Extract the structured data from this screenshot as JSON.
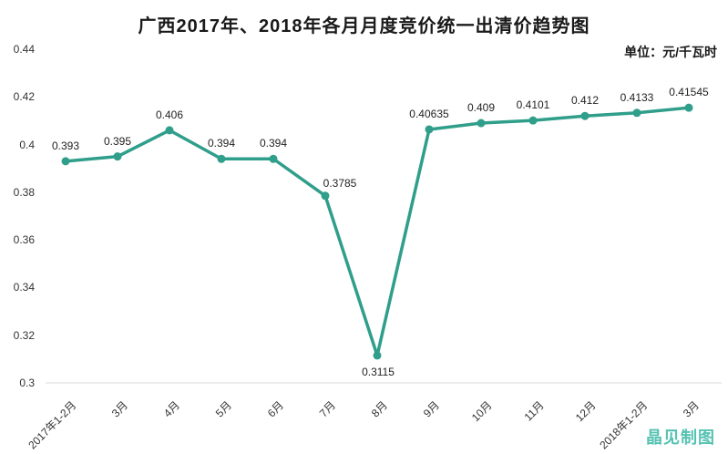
{
  "chart_data": {
    "type": "line",
    "title": "广西2017年、2018年各月月度竞价统一出清价趋势图",
    "unit_label": "单位：元/千瓦时",
    "categories": [
      "2017年1-2月",
      "3月",
      "4月",
      "5月",
      "6月",
      "7月",
      "8月",
      "9月",
      "10月",
      "11月",
      "12月",
      "2018年1-2月",
      "3月"
    ],
    "values": [
      0.393,
      0.395,
      0.406,
      0.394,
      0.394,
      0.3785,
      0.3115,
      0.40635,
      0.409,
      0.4101,
      0.412,
      0.4133,
      0.41545
    ],
    "point_labels": [
      "0.393",
      "0.395",
      "0.406",
      "0.394",
      "0.394",
      "0.3785",
      "0.3115",
      "0.40635",
      "0.409",
      "0.4101",
      "0.412",
      "0.4133",
      "0.41545"
    ],
    "label_offsets": {
      "5": [
        16,
        -13
      ],
      "6": [
        1,
        19
      ]
    },
    "y_ticks": [
      "0.44",
      "0.42",
      "0.4",
      "0.38",
      "0.36",
      "0.34",
      "0.32",
      "0.3"
    ],
    "ylim": [
      0.3,
      0.44
    ],
    "grid": false,
    "legend": "none",
    "line_color": "#2f9e8a",
    "axis_color": "#d9d9d9",
    "text_color": "#333333",
    "watermark": "晶见制图",
    "watermark_color": "#56c2b2"
  }
}
